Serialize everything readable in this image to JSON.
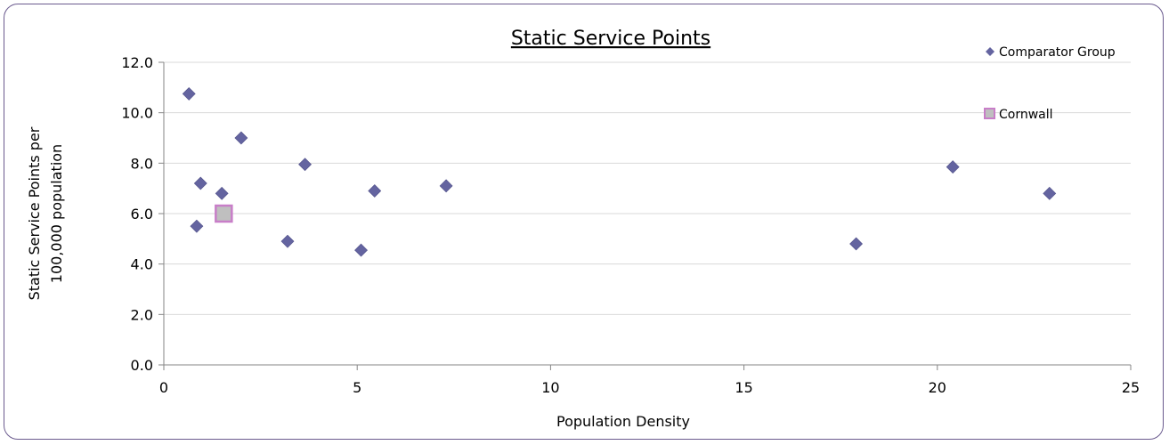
{
  "chart_data": {
    "type": "scatter",
    "title": "Static Service Points",
    "xlabel": "Population Density",
    "ylabel_lines": [
      "Static Service Points per",
      "100,000 population"
    ],
    "xlim": [
      0,
      25
    ],
    "ylim": [
      0,
      12
    ],
    "x_ticks": [
      "0",
      "5",
      "10",
      "15",
      "20",
      "25"
    ],
    "y_ticks": [
      "0.0",
      "2.0",
      "4.0",
      "6.0",
      "8.0",
      "10.0",
      "12.0"
    ],
    "grid": "horizontal",
    "legend_position": "top-right",
    "series": [
      {
        "name": "Comparator Group",
        "marker": "diamond",
        "color": "#6464a0",
        "points": [
          {
            "x": 0.65,
            "y": 10.75
          },
          {
            "x": 2.0,
            "y": 9.0
          },
          {
            "x": 3.65,
            "y": 7.95
          },
          {
            "x": 0.95,
            "y": 7.2
          },
          {
            "x": 1.5,
            "y": 6.8
          },
          {
            "x": 0.85,
            "y": 5.5
          },
          {
            "x": 3.2,
            "y": 4.9
          },
          {
            "x": 5.1,
            "y": 4.55
          },
          {
            "x": 5.45,
            "y": 6.9
          },
          {
            "x": 7.3,
            "y": 7.1
          },
          {
            "x": 17.9,
            "y": 4.8
          },
          {
            "x": 20.4,
            "y": 7.85
          },
          {
            "x": 22.9,
            "y": 6.8
          }
        ]
      },
      {
        "name": "Cornwall",
        "marker": "square",
        "color": "#bfbfbf",
        "edge_color": "#c87ec8",
        "points": [
          {
            "x": 1.55,
            "y": 6.0
          }
        ]
      }
    ]
  }
}
